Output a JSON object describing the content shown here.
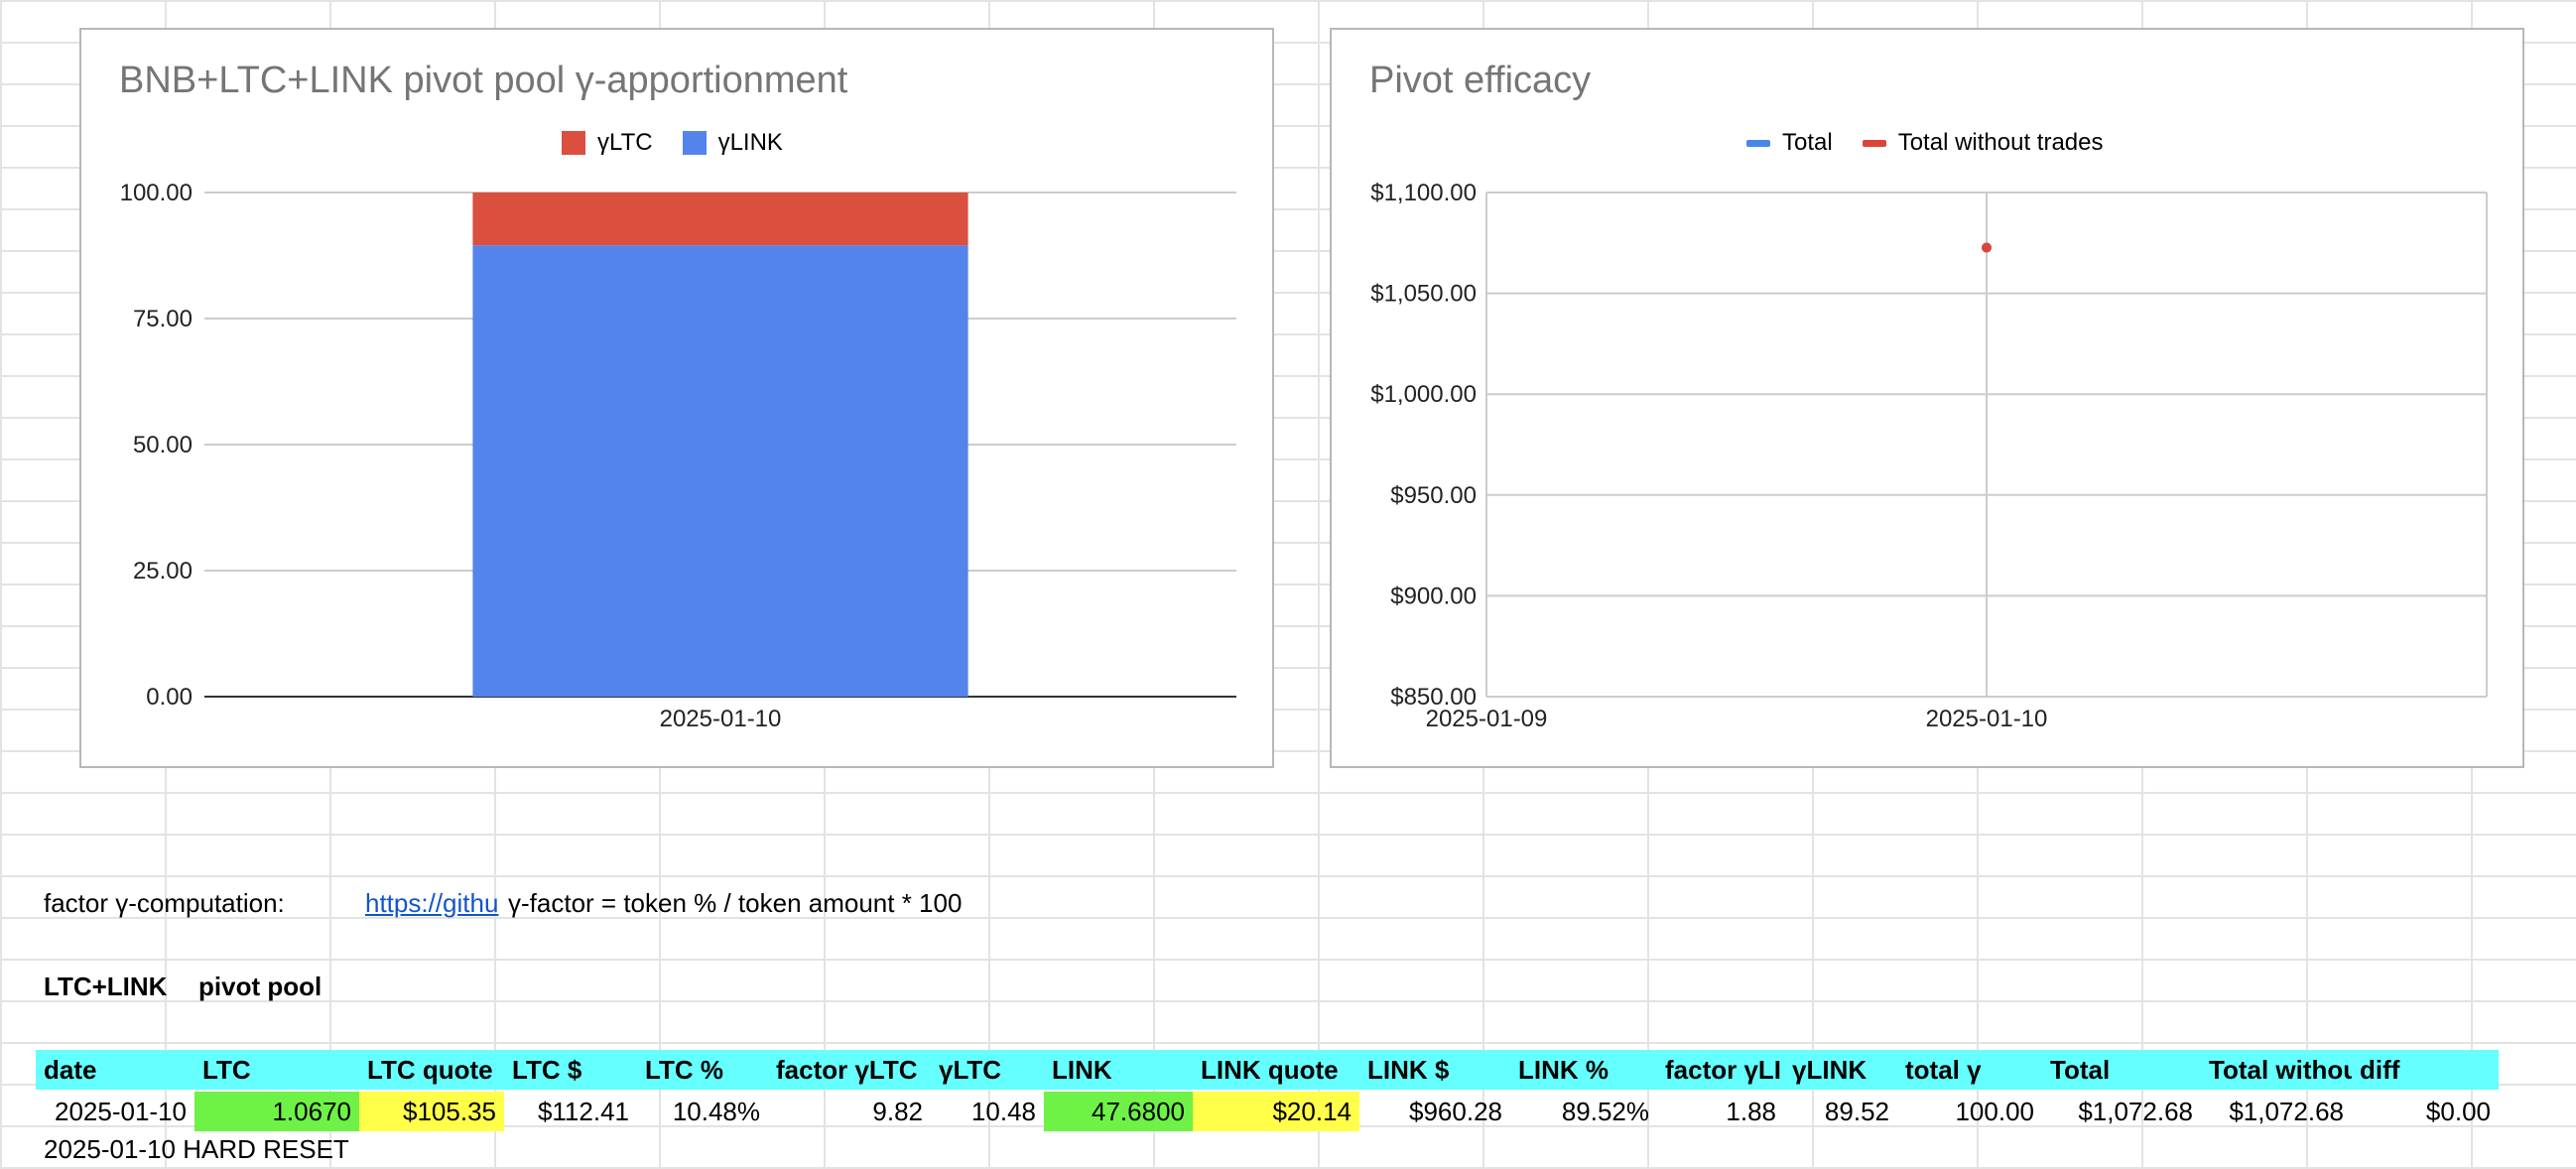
{
  "colors": {
    "ltc_bar": "#db4f3f",
    "link_bar": "#5384ec",
    "total_line": "#4a86e8",
    "total_without_line": "#db4437",
    "header_fill": "#66ffff",
    "input_green": "#6ef246",
    "quote_yellow": "#ffff4a"
  },
  "chart_data": [
    {
      "type": "bar",
      "stacked": true,
      "title": "BNB+LTC+LINK pivot pool γ-apportionment",
      "categories": [
        "2025-01-10"
      ],
      "series": [
        {
          "name": "γLTC",
          "values": [
            10.48
          ]
        },
        {
          "name": "γLINK",
          "values": [
            89.52
          ]
        }
      ],
      "ylim": [
        0,
        100
      ],
      "yticks": [
        "100.00",
        "75.00",
        "50.00",
        "25.00",
        "0.00"
      ],
      "grid": true,
      "legend": "top-center"
    },
    {
      "type": "line",
      "title": "Pivot efficacy",
      "x": [
        "2025-01-10"
      ],
      "xticks": [
        "2025-01-09",
        "2025-01-10"
      ],
      "series": [
        {
          "name": "Total",
          "values": [
            1072.68
          ]
        },
        {
          "name": "Total without trades",
          "values": [
            1072.68
          ]
        }
      ],
      "ylim": [
        850,
        1100
      ],
      "yticks": [
        "$1,100.00",
        "$1,050.00",
        "$1,000.00",
        "$950.00",
        "$900.00",
        "$850.00"
      ],
      "grid": true,
      "legend": "top-center"
    }
  ],
  "sheet": {
    "factor_label": "factor γ-computation:",
    "factor_link": "https://githu",
    "factor_formula": "γ-factor = token % / token amount * 100",
    "pool_name": "LTC+LINK",
    "pool_label": "pivot pool",
    "headers": [
      "date",
      "LTC",
      "LTC quote",
      "LTC $",
      "LTC %",
      "factor γLTC",
      "γLTC",
      "LINK",
      "LINK quote",
      "LINK $",
      "LINK %",
      "factor γLI",
      "γLINK",
      "total γ",
      "Total",
      "Total withou",
      "diff"
    ],
    "row": [
      "2025-01-10",
      "1.0670",
      "$105.35",
      "$112.41",
      "10.48%",
      "9.82",
      "10.48",
      "47.6800",
      "$20.14",
      "$960.28",
      "89.52%",
      "1.88",
      "89.52",
      "100.00",
      "$1,072.68",
      "$1,072.68",
      "$0.00"
    ],
    "next_row_partial": "2025-01-10 HARD RESET"
  }
}
